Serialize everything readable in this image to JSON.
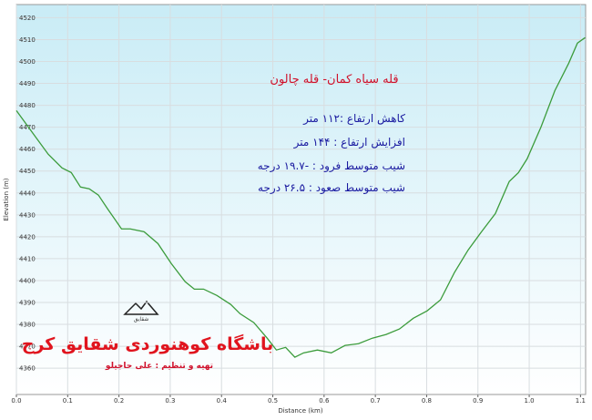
{
  "chart_data": {
    "type": "line",
    "ylabel": "Elevation (m)",
    "xlabel": "Distance (km)",
    "title": "قله سیاه کمان- قله چالون",
    "info": [
      "کاهش ارتفاع :۱۱۲ متر",
      "افزایش ارتفاع : ۱۴۴ متر",
      "شیب متوسط فرود : -۱۹.۷ درجه",
      "شیب متوسط صعود : ۲۶.۵ درجه"
    ],
    "club": "باشگاه کوهنوردی شقایق کرج",
    "credit": "تهیه و تنظیم : علی حاجیلو",
    "logo_text": "شقایق",
    "xlim": [
      0,
      1.11
    ],
    "ylim": [
      4348,
      4526
    ],
    "xticks": [
      {
        "value": 0,
        "label": "0.0"
      },
      0.1,
      0.2,
      0.3,
      0.4,
      0.5,
      0.6,
      0.7,
      0.8,
      0.9,
      {
        "value": 1,
        "label": "1.0"
      },
      1.1
    ],
    "yticks": [
      4360,
      4370,
      4380,
      4390,
      4400,
      4410,
      4420,
      4430,
      4440,
      4450,
      4460,
      4470,
      4480,
      4490,
      4500,
      4510,
      4520
    ],
    "grid": true,
    "series": [
      {
        "color": "#3c9c3c",
        "x": [
          0,
          0.036,
          0.062,
          0.089,
          0.107,
          0.125,
          0.142,
          0.16,
          0.178,
          0.205,
          0.222,
          0.249,
          0.276,
          0.302,
          0.329,
          0.347,
          0.365,
          0.391,
          0.418,
          0.436,
          0.463,
          0.489,
          0.507,
          0.525,
          0.543,
          0.56,
          0.587,
          0.614,
          0.641,
          0.667,
          0.694,
          0.721,
          0.747,
          0.774,
          0.801,
          0.827,
          0.854,
          0.881,
          0.907,
          0.934,
          0.961,
          0.979,
          0.996,
          1.023,
          1.05,
          1.077,
          1.094,
          1.109
        ],
        "values": [
          4477.6,
          4466,
          4457.7,
          4451.4,
          4449.3,
          4442.7,
          4441.9,
          4439,
          4432.7,
          4423.6,
          4423.6,
          4422.3,
          4416.9,
          4407.8,
          4399.5,
          4396.1,
          4396.1,
          4393.2,
          4389.1,
          4384.9,
          4380.8,
          4373.7,
          4368.3,
          4369.5,
          4365,
          4367,
          4368.3,
          4367,
          4370.4,
          4371.2,
          4373.7,
          4375.4,
          4377.9,
          4382.8,
          4386.2,
          4391.2,
          4403.6,
          4414,
          4422.3,
          4430.6,
          4445.2,
          4449.3,
          4455.6,
          4470.1,
          4486.7,
          4499.2,
          4508.4,
          4510.9
        ]
      }
    ]
  }
}
